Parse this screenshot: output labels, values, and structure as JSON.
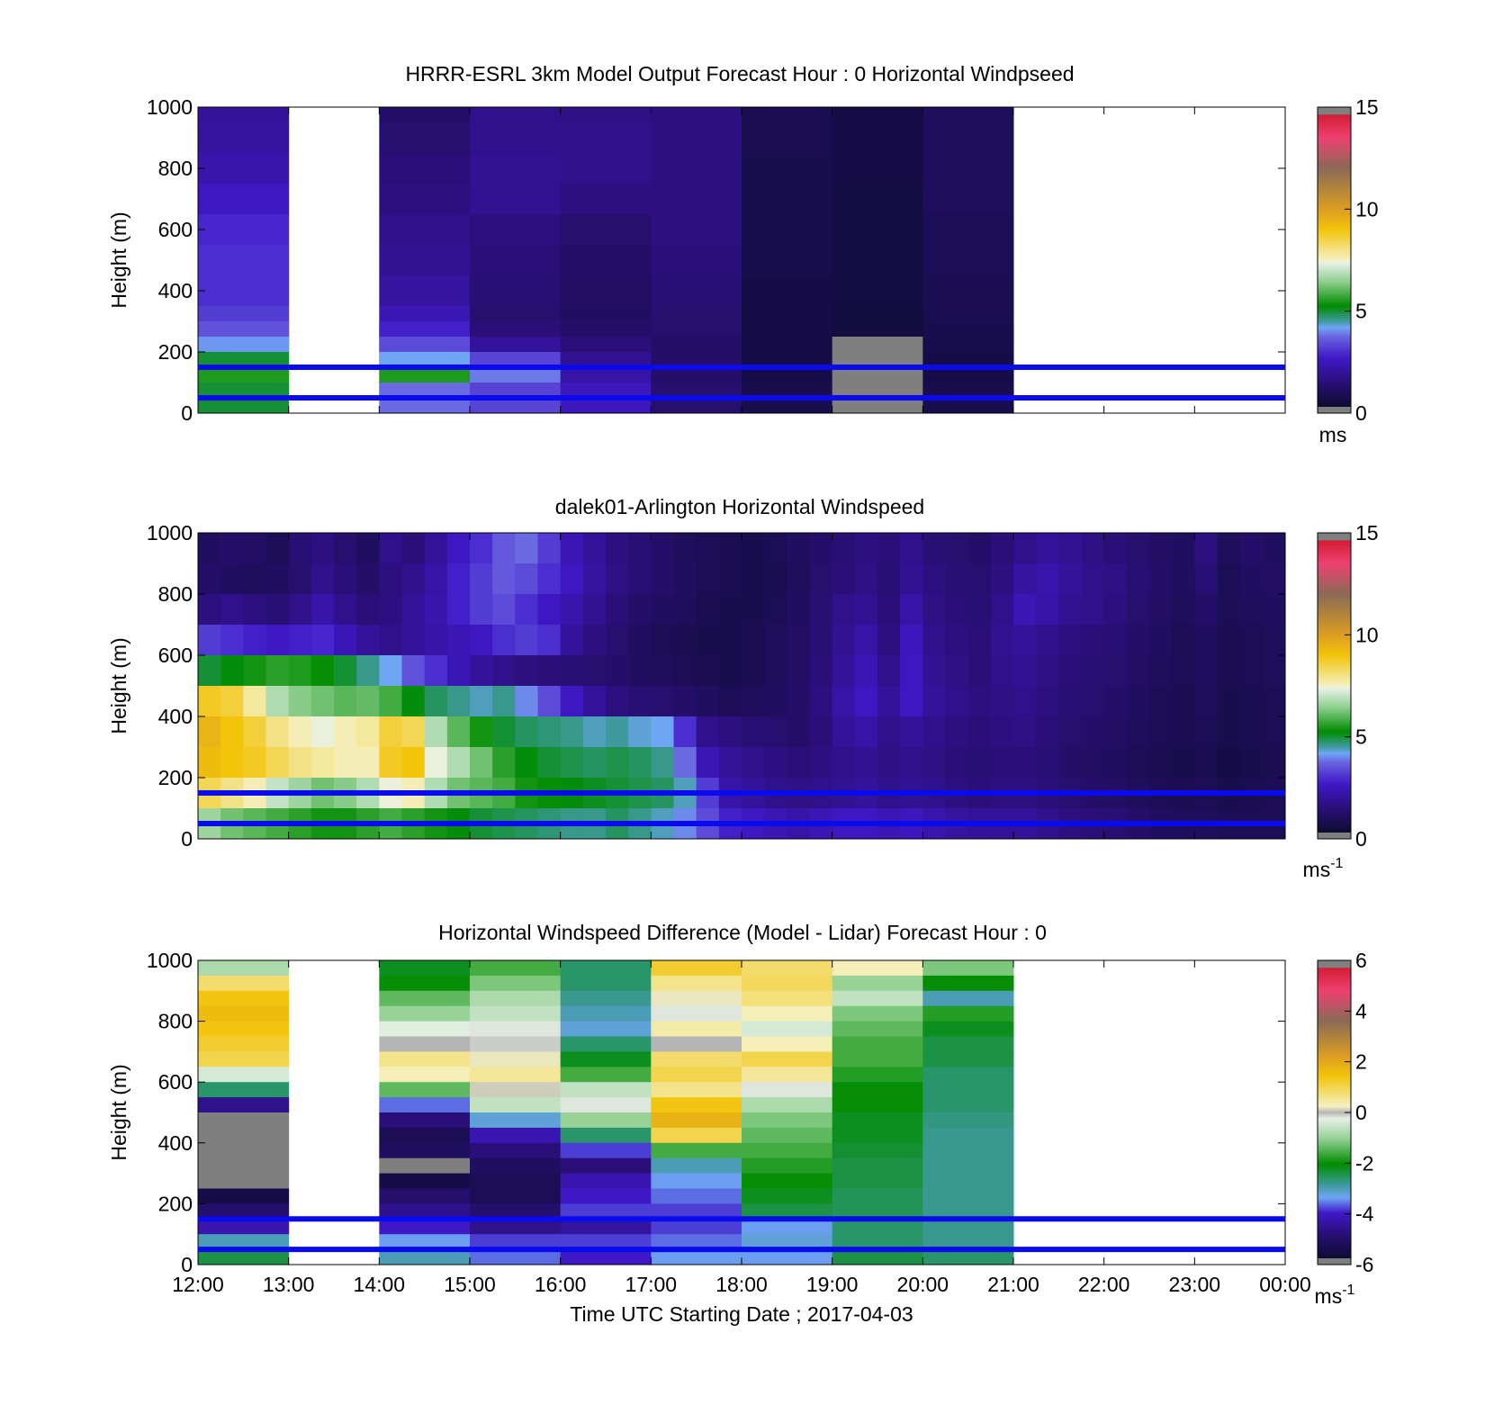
{
  "chart_data": [
    {
      "type": "heatmap",
      "title": "HRRR-ESRL 3km Model Output   Forecast Hour : 0 Horizontal Windpseed",
      "ylabel": "Height (m)",
      "xlabel": "",
      "ylim": [
        0,
        1000
      ],
      "yticks": [
        "0",
        "200",
        "400",
        "600",
        "800",
        "1000"
      ],
      "xticks": [
        "12:00",
        "13:00",
        "14:00",
        "15:00",
        "16:00",
        "17:00",
        "18:00",
        "19:00",
        "20:00",
        "21:00",
        "22:00",
        "23:00",
        "00:00"
      ],
      "colorbar": {
        "min": 0,
        "max": 15,
        "ticks": [
          "0",
          "5",
          "10",
          "15"
        ],
        "unit": "ms",
        "unit_sup": ""
      },
      "reference_lines_m": [
        50,
        150
      ],
      "x_hours": [
        0,
        2,
        3,
        4,
        5,
        6,
        7,
        8
      ],
      "heights_m": [
        1000,
        900,
        800,
        700,
        600,
        500,
        400,
        300,
        250,
        200,
        150,
        100,
        50
      ],
      "values": [
        [
          2.0,
          1.2,
          1.8,
          1.7,
          1.6,
          0.7,
          0.5,
          0.9
        ],
        [
          2.1,
          1.3,
          1.8,
          1.8,
          1.6,
          0.7,
          0.5,
          0.9
        ],
        [
          2.3,
          1.5,
          1.9,
          1.8,
          1.6,
          0.6,
          0.5,
          0.9
        ],
        [
          2.6,
          1.6,
          1.9,
          1.6,
          1.6,
          0.6,
          0.4,
          0.9
        ],
        [
          2.9,
          1.8,
          1.6,
          1.3,
          1.6,
          0.6,
          0.4,
          0.8
        ],
        [
          3.0,
          1.9,
          1.5,
          1.2,
          1.5,
          0.6,
          0.4,
          0.8
        ],
        [
          3.0,
          2.1,
          1.4,
          1.1,
          1.4,
          0.5,
          0.4,
          0.7
        ],
        [
          3.2,
          2.4,
          1.3,
          1.0,
          1.3,
          0.5,
          0.3,
          0.7
        ],
        [
          3.5,
          2.8,
          1.5,
          1.2,
          1.3,
          0.5,
          0.3,
          0.6
        ],
        [
          4.1,
          3.4,
          2.0,
          1.5,
          1.2,
          0.5,
          0.0,
          0.6
        ],
        [
          5.0,
          4.2,
          3.3,
          1.9,
          1.2,
          0.5,
          0.0,
          0.5
        ],
        [
          5.5,
          5.5,
          3.9,
          2.2,
          1.2,
          0.5,
          0.0,
          0.5
        ],
        [
          5.0,
          3.8,
          3.3,
          2.5,
          1.3,
          0.6,
          0.0,
          0.6
        ]
      ]
    },
    {
      "type": "heatmap",
      "title": "dalek01-Arlington  Horizontal Windspeed",
      "ylabel": "Height (m)",
      "xlabel": "",
      "ylim": [
        0,
        1000
      ],
      "yticks": [
        "0",
        "200",
        "400",
        "600",
        "800",
        "1000"
      ],
      "xticks": [],
      "colorbar": {
        "min": 0,
        "max": 15,
        "ticks": [
          "0",
          "5",
          "10",
          "15"
        ],
        "unit": "ms",
        "unit_sup": "-1"
      },
      "reference_lines_m": [
        50,
        150
      ],
      "x_hours": [
        0,
        0.25,
        0.5,
        0.75,
        1,
        1.25,
        1.5,
        1.75,
        2,
        2.25,
        2.5,
        2.75,
        3,
        3.25,
        3.5,
        3.75,
        4,
        4.25,
        4.5,
        4.75,
        5,
        5.25,
        5.5,
        5.75,
        6,
        6.25,
        6.5,
        6.75,
        7,
        7.25,
        7.5,
        7.75,
        8,
        8.25,
        8.5,
        8.75,
        9,
        9.25,
        9.5,
        9.75,
        10,
        10.25,
        10.5,
        10.75,
        11,
        11.25,
        11.5,
        11.75
      ],
      "heights_m": [
        950,
        850,
        750,
        650,
        550,
        450,
        350,
        250,
        150,
        50
      ],
      "values": [
        [
          1.0,
          1.2,
          1.1,
          0.8,
          1.4,
          1.6,
          1.3,
          1.0,
          1.8,
          1.5,
          2.0,
          2.6,
          3.0,
          3.6,
          3.8,
          3.2,
          2.4,
          2.0,
          1.6,
          1.4,
          1.2,
          0.9,
          0.8,
          0.7,
          0.6,
          0.8,
          1.0,
          1.2,
          1.4,
          1.6,
          1.5,
          1.8,
          1.4,
          1.3,
          1.2,
          1.5,
          1.8,
          2.0,
          1.9,
          1.7,
          1.5,
          1.3,
          1.1,
          1.0,
          1.6,
          0.9,
          1.2,
          1.0
        ],
        [
          1.2,
          1.0,
          0.9,
          1.0,
          1.3,
          1.8,
          1.5,
          1.2,
          1.6,
          1.8,
          2.2,
          2.8,
          3.2,
          3.6,
          3.4,
          3.0,
          2.6,
          2.1,
          1.7,
          1.4,
          1.2,
          1.0,
          0.8,
          0.7,
          0.6,
          0.7,
          0.9,
          1.3,
          1.5,
          1.7,
          1.4,
          1.9,
          1.6,
          1.4,
          1.3,
          1.6,
          2.1,
          2.3,
          2.0,
          1.8,
          1.7,
          1.4,
          1.2,
          1.0,
          1.4,
          0.8,
          1.0,
          1.1
        ],
        [
          1.6,
          1.8,
          1.6,
          1.4,
          1.8,
          2.2,
          1.8,
          1.5,
          1.6,
          2.0,
          2.3,
          2.8,
          3.2,
          3.4,
          3.0,
          2.6,
          2.3,
          1.9,
          1.5,
          1.2,
          1.0,
          0.9,
          0.7,
          0.6,
          0.6,
          0.8,
          1.0,
          1.4,
          1.8,
          1.9,
          1.5,
          2.2,
          1.7,
          1.5,
          1.4,
          1.8,
          2.4,
          2.2,
          1.9,
          1.8,
          1.6,
          1.3,
          1.1,
          0.9,
          1.2,
          0.8,
          0.9,
          1.0
        ],
        [
          3.2,
          3.0,
          2.8,
          2.6,
          2.8,
          2.9,
          2.4,
          2.0,
          1.8,
          2.0,
          2.2,
          2.4,
          2.6,
          3.0,
          3.2,
          3.0,
          2.0,
          1.6,
          1.3,
          1.0,
          0.8,
          0.7,
          0.6,
          0.6,
          0.7,
          0.9,
          1.1,
          1.4,
          1.9,
          2.2,
          1.6,
          2.5,
          1.8,
          1.6,
          1.5,
          1.9,
          2.0,
          1.8,
          1.6,
          1.5,
          1.4,
          1.2,
          1.0,
          0.8,
          1.0,
          0.7,
          0.8,
          0.9
        ],
        [
          5.0,
          5.2,
          5.4,
          5.6,
          5.5,
          5.3,
          5.0,
          4.6,
          4.2,
          3.5,
          3.0,
          2.4,
          2.0,
          1.8,
          1.6,
          1.5,
          1.4,
          1.3,
          1.2,
          1.0,
          0.9,
          0.8,
          0.7,
          0.6,
          0.7,
          0.9,
          1.1,
          1.5,
          2.0,
          2.4,
          1.8,
          2.6,
          1.9,
          1.7,
          1.5,
          1.8,
          1.9,
          1.7,
          1.5,
          1.4,
          1.3,
          1.1,
          0.9,
          0.8,
          1.0,
          0.7,
          0.8,
          0.9
        ],
        [
          8.8,
          8.6,
          7.8,
          6.8,
          6.4,
          6.2,
          6.0,
          6.1,
          5.8,
          5.2,
          4.8,
          4.6,
          4.4,
          4.6,
          4.0,
          3.4,
          2.6,
          2.0,
          1.6,
          1.4,
          1.3,
          1.2,
          1.0,
          0.8,
          0.9,
          1.0,
          1.2,
          1.6,
          2.2,
          2.6,
          2.0,
          2.6,
          2.0,
          1.8,
          1.6,
          1.7,
          1.8,
          1.6,
          1.4,
          1.3,
          1.2,
          1.0,
          0.8,
          0.7,
          0.9,
          0.6,
          0.7,
          0.8
        ],
        [
          9.4,
          9.0,
          8.6,
          8.0,
          7.6,
          7.4,
          7.6,
          7.8,
          8.6,
          8.4,
          6.8,
          6.0,
          5.4,
          5.0,
          4.8,
          4.7,
          4.6,
          4.4,
          4.5,
          4.3,
          4.2,
          3.0,
          1.8,
          1.6,
          1.4,
          1.3,
          1.2,
          1.5,
          2.0,
          2.2,
          1.8,
          2.0,
          1.8,
          1.6,
          1.5,
          1.6,
          1.7,
          1.5,
          1.3,
          1.2,
          1.1,
          0.9,
          0.8,
          0.7,
          0.8,
          0.6,
          0.7,
          0.8
        ],
        [
          9.2,
          9.0,
          8.8,
          8.4,
          8.0,
          7.8,
          7.6,
          7.6,
          8.8,
          9.0,
          7.4,
          6.8,
          6.2,
          5.6,
          5.2,
          5.0,
          4.9,
          4.8,
          4.9,
          4.8,
          4.6,
          3.8,
          2.4,
          2.0,
          1.8,
          1.6,
          1.5,
          1.6,
          1.8,
          1.9,
          1.7,
          1.8,
          1.7,
          1.5,
          1.4,
          1.5,
          1.5,
          1.4,
          1.2,
          1.1,
          1.0,
          0.8,
          0.7,
          0.6,
          0.7,
          0.5,
          0.6,
          0.7
        ],
        [
          8.4,
          8.0,
          7.6,
          7.0,
          6.6,
          6.2,
          6.4,
          6.8,
          7.4,
          7.6,
          6.8,
          6.2,
          6.0,
          5.8,
          5.4,
          5.3,
          5.2,
          5.1,
          5.0,
          4.9,
          4.8,
          4.4,
          3.2,
          2.2,
          2.0,
          1.8,
          1.7,
          1.8,
          1.9,
          2.0,
          1.8,
          1.9,
          1.8,
          1.6,
          1.5,
          1.6,
          1.6,
          1.5,
          1.3,
          1.2,
          1.1,
          0.9,
          0.8,
          0.7,
          0.8,
          0.6,
          0.7,
          0.8
        ],
        [
          6.6,
          6.2,
          6.0,
          5.8,
          5.6,
          5.4,
          5.4,
          5.6,
          5.8,
          5.6,
          5.4,
          5.2,
          5.0,
          4.9,
          4.8,
          4.7,
          4.6,
          4.6,
          4.8,
          4.6,
          4.4,
          4.0,
          3.4,
          2.8,
          2.6,
          2.4,
          2.2,
          2.4,
          2.6,
          2.6,
          2.4,
          2.5,
          2.3,
          2.1,
          2.0,
          2.0,
          2.0,
          1.8,
          1.6,
          1.5,
          1.4,
          1.2,
          1.0,
          0.9,
          0.9,
          0.8,
          0.8,
          0.8
        ]
      ]
    },
    {
      "type": "heatmap",
      "title": "Horizontal Windspeed Difference (Model - Lidar) Forecast Hour : 0",
      "ylabel": "Height (m)",
      "xlabel": "Time UTC  Starting Date ; 2017-04-03",
      "ylim": [
        0,
        1000
      ],
      "yticks": [
        "0",
        "200",
        "400",
        "600",
        "800",
        "1000"
      ],
      "xticks": [
        "12:00",
        "13:00",
        "14:00",
        "15:00",
        "16:00",
        "17:00",
        "18:00",
        "19:00",
        "20:00",
        "21:00",
        "22:00",
        "23:00",
        "00:00"
      ],
      "colorbar": {
        "min": -6,
        "max": 6,
        "ticks": [
          "-6",
          "-4",
          "-2",
          "0",
          "2",
          "4",
          "6"
        ],
        "unit": "ms",
        "unit_sup": "-1"
      },
      "reference_lines_m": [
        50,
        150
      ],
      "x_hours": [
        0,
        2,
        3,
        4,
        5,
        6,
        7,
        8
      ],
      "heights_m": [
        975,
        925,
        875,
        825,
        775,
        725,
        675,
        625,
        575,
        525,
        475,
        425,
        375,
        325,
        275,
        225,
        175,
        125,
        75,
        25
      ],
      "values": [
        [
          -0.8,
          -2.2,
          -1.6,
          -2.6,
          1.2,
          0.8,
          0.3,
          -1.2
        ],
        [
          0.8,
          -2.0,
          -1.2,
          -2.6,
          0.6,
          0.9,
          -1.0,
          -2.0
        ],
        [
          1.4,
          -1.4,
          -0.8,
          -2.8,
          0.2,
          0.7,
          -0.6,
          -3.0
        ],
        [
          1.6,
          -1.0,
          -0.6,
          -3.0,
          -0.2,
          0.3,
          -1.2,
          -1.8
        ],
        [
          1.4,
          -0.3,
          -0.2,
          -3.2,
          0.4,
          -0.4,
          -1.4,
          -2.2
        ],
        [
          1.2,
          0.0,
          -0.1,
          -2.6,
          0.0,
          0.3,
          -1.6,
          -2.4
        ],
        [
          1.0,
          0.6,
          0.2,
          -2.2,
          0.8,
          1.0,
          -1.6,
          -2.4
        ],
        [
          -0.4,
          0.3,
          0.5,
          -1.6,
          1.0,
          0.5,
          -1.8,
          -2.6
        ],
        [
          -2.6,
          -1.4,
          0.1,
          -0.6,
          0.6,
          -0.2,
          -2.0,
          -2.6
        ],
        [
          -4.6,
          -3.6,
          -0.6,
          -0.2,
          1.4,
          -0.8,
          -2.0,
          -2.6
        ],
        [
          -6.0,
          -4.8,
          -3.2,
          -1.0,
          1.8,
          -1.2,
          -2.2,
          -2.7
        ],
        [
          -6.0,
          -5.4,
          -4.2,
          -2.6,
          1.0,
          -1.4,
          -2.2,
          -2.8
        ],
        [
          -6.0,
          -5.2,
          -4.8,
          -3.8,
          -1.6,
          -1.6,
          -2.3,
          -2.8
        ],
        [
          -6.0,
          -6.0,
          -5.2,
          -4.8,
          -3.0,
          -1.8,
          -2.4,
          -2.8
        ],
        [
          -6.0,
          -5.6,
          -5.4,
          -4.2,
          -3.4,
          -2.0,
          -2.4,
          -2.8
        ],
        [
          -5.6,
          -5.0,
          -5.4,
          -4.0,
          -3.6,
          -2.2,
          -2.5,
          -2.8
        ],
        [
          -5.0,
          -4.6,
          -5.0,
          -3.8,
          -3.8,
          -2.4,
          -2.5,
          -2.8
        ],
        [
          -4.2,
          -4.0,
          -4.6,
          -4.4,
          -3.8,
          -3.4,
          -2.6,
          -2.8
        ],
        [
          -3.0,
          -3.4,
          -3.8,
          -3.8,
          -3.6,
          -3.2,
          -2.6,
          -2.8
        ],
        [
          -2.4,
          -3.0,
          -3.6,
          -4.0,
          -3.4,
          -3.4,
          -2.4,
          -2.6
        ]
      ]
    }
  ]
}
